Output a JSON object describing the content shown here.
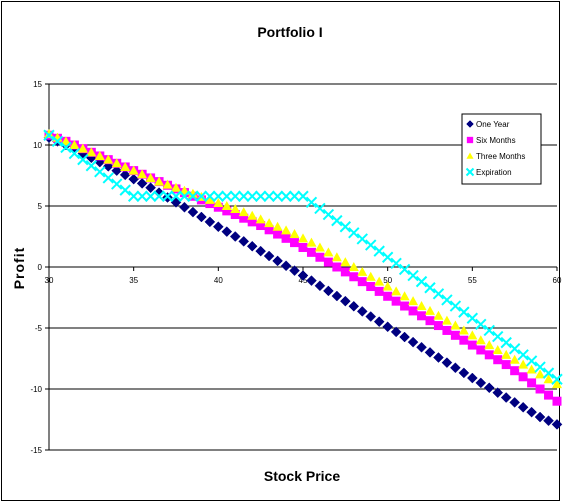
{
  "chart_data": {
    "type": "scatter",
    "title": "Portfolio I",
    "xlabel": "Stock Price",
    "ylabel": "Profit",
    "xlim": [
      30,
      60
    ],
    "ylim": [
      -15,
      15
    ],
    "xticks": [
      30,
      35,
      40,
      45,
      50,
      55,
      60
    ],
    "yticks": [
      15,
      10,
      5,
      0,
      -5,
      -10,
      -15
    ],
    "grid": "horizontal",
    "legend_position": "right",
    "series": [
      {
        "name": "One Year",
        "marker": "diamond",
        "color": "#000080",
        "x": [
          30,
          30.5,
          31,
          31.5,
          32,
          32.5,
          33,
          33.5,
          34,
          34.5,
          35,
          35.5,
          36,
          36.5,
          37,
          37.5,
          38,
          38.5,
          39,
          39.5,
          40,
          40.5,
          41,
          41.5,
          42,
          42.5,
          43,
          43.5,
          44,
          44.5,
          45,
          45.5,
          46,
          46.5,
          47,
          47.5,
          48,
          48.5,
          49,
          49.5,
          50,
          50.5,
          51,
          51.5,
          52,
          52.5,
          53,
          53.5,
          54,
          54.5,
          55,
          55.5,
          56,
          56.5,
          57,
          57.5,
          58,
          58.5,
          59,
          59.5,
          60
        ],
        "y": [
          10.6,
          10.3,
          10.0,
          9.65,
          9.3,
          8.95,
          8.6,
          8.25,
          7.9,
          7.55,
          7.2,
          6.85,
          6.5,
          6.1,
          5.7,
          5.3,
          4.9,
          4.5,
          4.1,
          3.7,
          3.3,
          2.9,
          2.5,
          2.1,
          1.7,
          1.3,
          0.9,
          0.5,
          0.1,
          -0.3,
          -0.7,
          -1.12,
          -1.54,
          -1.96,
          -2.38,
          -2.8,
          -3.22,
          -3.64,
          -4.06,
          -4.48,
          -4.9,
          -5.32,
          -5.74,
          -6.16,
          -6.58,
          -7.0,
          -7.42,
          -7.84,
          -8.26,
          -8.68,
          -9.1,
          -9.5,
          -9.9,
          -10.3,
          -10.7,
          -11.1,
          -11.5,
          -11.9,
          -12.3,
          -12.6,
          -12.9
        ]
      },
      {
        "name": "Six Months",
        "marker": "square",
        "color": "#FF00FF",
        "x": [
          30,
          30.5,
          31,
          31.5,
          32,
          32.5,
          33,
          33.5,
          34,
          34.5,
          35,
          35.5,
          36,
          36.5,
          37,
          37.5,
          38,
          38.5,
          39,
          39.5,
          40,
          40.5,
          41,
          41.5,
          42,
          42.5,
          43,
          43.5,
          44,
          44.5,
          45,
          45.5,
          46,
          46.5,
          47,
          47.5,
          48,
          48.5,
          49,
          49.5,
          50,
          50.5,
          51,
          51.5,
          52,
          52.5,
          53,
          53.5,
          54,
          54.5,
          55,
          55.5,
          56,
          56.5,
          57,
          57.5,
          58,
          58.5,
          59,
          59.5,
          60
        ],
        "y": [
          10.8,
          10.55,
          10.3,
          10.0,
          9.7,
          9.4,
          9.1,
          8.8,
          8.5,
          8.2,
          7.9,
          7.6,
          7.3,
          7.0,
          6.7,
          6.4,
          6.1,
          5.8,
          5.5,
          5.2,
          4.9,
          4.6,
          4.3,
          4.0,
          3.7,
          3.4,
          3.05,
          2.7,
          2.35,
          2.0,
          1.6,
          1.2,
          0.8,
          0.4,
          0.0,
          -0.4,
          -0.8,
          -1.2,
          -1.6,
          -2.0,
          -2.4,
          -2.8,
          -3.2,
          -3.6,
          -4.0,
          -4.4,
          -4.8,
          -5.2,
          -5.6,
          -6.0,
          -6.4,
          -6.8,
          -7.2,
          -7.6,
          -8.0,
          -8.5,
          -9.0,
          -9.5,
          -10.0,
          -10.5,
          -11.0
        ]
      },
      {
        "name": "Three Months",
        "marker": "triangle",
        "color": "#FFFF00",
        "x": [
          30,
          30.5,
          31,
          31.5,
          32,
          32.5,
          33,
          33.5,
          34,
          34.5,
          35,
          35.5,
          36,
          36.5,
          37,
          37.5,
          38,
          38.5,
          39,
          39.5,
          40,
          40.5,
          41,
          41.5,
          42,
          42.5,
          43,
          43.5,
          44,
          44.5,
          45,
          45.5,
          46,
          46.5,
          47,
          47.5,
          48,
          48.5,
          49,
          49.5,
          50,
          50.5,
          51,
          51.5,
          52,
          52.5,
          53,
          53.5,
          54,
          54.5,
          55,
          55.5,
          56,
          56.5,
          57,
          57.5,
          58,
          58.5,
          59,
          59.5,
          60
        ],
        "y": [
          10.9,
          10.6,
          10.3,
          10.0,
          9.7,
          9.4,
          9.1,
          8.8,
          8.5,
          8.2,
          7.9,
          7.6,
          7.3,
          7.0,
          6.75,
          6.5,
          6.25,
          6.0,
          5.75,
          5.5,
          5.25,
          5.0,
          4.75,
          4.5,
          4.2,
          3.9,
          3.6,
          3.3,
          3.0,
          2.7,
          2.35,
          2.0,
          1.6,
          1.2,
          0.8,
          0.4,
          0.0,
          -0.4,
          -0.8,
          -1.2,
          -1.6,
          -2.0,
          -2.4,
          -2.8,
          -3.2,
          -3.6,
          -4.0,
          -4.4,
          -4.8,
          -5.2,
          -5.6,
          -6.0,
          -6.4,
          -6.8,
          -7.2,
          -7.6,
          -8.0,
          -8.4,
          -8.8,
          -9.2,
          -9.6
        ]
      },
      {
        "name": "Expiration",
        "marker": "x",
        "color": "#00FFFF",
        "x": [
          30,
          30.5,
          31,
          31.5,
          32,
          32.5,
          33,
          33.5,
          34,
          34.5,
          35,
          35.5,
          36,
          36.5,
          37,
          37.5,
          38,
          38.5,
          39,
          39.5,
          40,
          40.5,
          41,
          41.5,
          42,
          42.5,
          43,
          43.5,
          44,
          44.5,
          45,
          45.5,
          46,
          46.5,
          47,
          47.5,
          48,
          48.5,
          49,
          49.5,
          50,
          50.5,
          51,
          51.5,
          52,
          52.5,
          53,
          53.5,
          54,
          54.5,
          55,
          55.5,
          56,
          56.5,
          57,
          57.5,
          58,
          58.5,
          59,
          59.5,
          60
        ],
        "y": [
          10.8,
          10.3,
          9.8,
          9.3,
          8.8,
          8.3,
          7.8,
          7.3,
          6.8,
          6.3,
          5.8,
          5.8,
          5.8,
          5.8,
          5.8,
          5.8,
          5.8,
          5.8,
          5.8,
          5.8,
          5.8,
          5.8,
          5.8,
          5.8,
          5.8,
          5.8,
          5.8,
          5.8,
          5.8,
          5.8,
          5.8,
          5.3,
          4.8,
          4.3,
          3.8,
          3.3,
          2.8,
          2.3,
          1.8,
          1.3,
          0.8,
          0.3,
          -0.2,
          -0.7,
          -1.2,
          -1.7,
          -2.2,
          -2.7,
          -3.2,
          -3.7,
          -4.2,
          -4.7,
          -5.2,
          -5.7,
          -6.2,
          -6.7,
          -7.2,
          -7.7,
          -8.2,
          -8.7,
          -9.2
        ]
      }
    ]
  }
}
